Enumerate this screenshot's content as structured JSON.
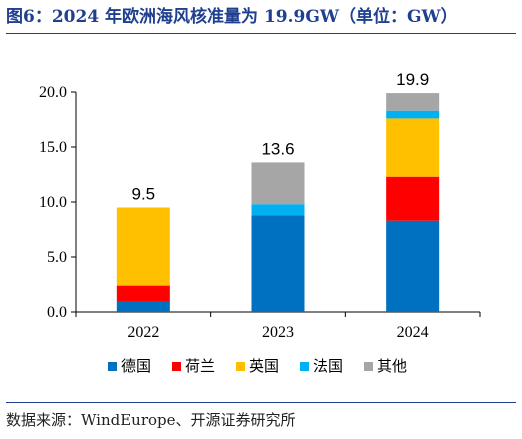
{
  "figure": {
    "title": "图6：2024 年欧洲海风核准量为 19.9GW（单位：GW）",
    "source": "数据来源：WindEurope、开源证券研究所"
  },
  "chart_data": {
    "type": "bar",
    "stacked": true,
    "categories": [
      "2022",
      "2023",
      "2024"
    ],
    "series": [
      {
        "name": "德国",
        "color": "#0070c0",
        "values": [
          1.0,
          8.8,
          8.3
        ]
      },
      {
        "name": "荷兰",
        "color": "#ff0000",
        "values": [
          1.4,
          0.0,
          4.0
        ]
      },
      {
        "name": "英国",
        "color": "#ffc000",
        "values": [
          7.1,
          0.0,
          5.3
        ]
      },
      {
        "name": "法国",
        "color": "#00b0f0",
        "values": [
          0.0,
          1.0,
          0.7
        ]
      },
      {
        "name": "其他",
        "color": "#a6a6a6",
        "values": [
          0.0,
          3.8,
          1.6
        ]
      }
    ],
    "totals": [
      "9.5",
      "13.6",
      "19.9"
    ],
    "ylim": [
      0,
      20
    ],
    "yticks": [
      "0.0",
      "5.0",
      "10.0",
      "15.0",
      "20.0"
    ],
    "legend_position": "bottom",
    "grid": false
  }
}
